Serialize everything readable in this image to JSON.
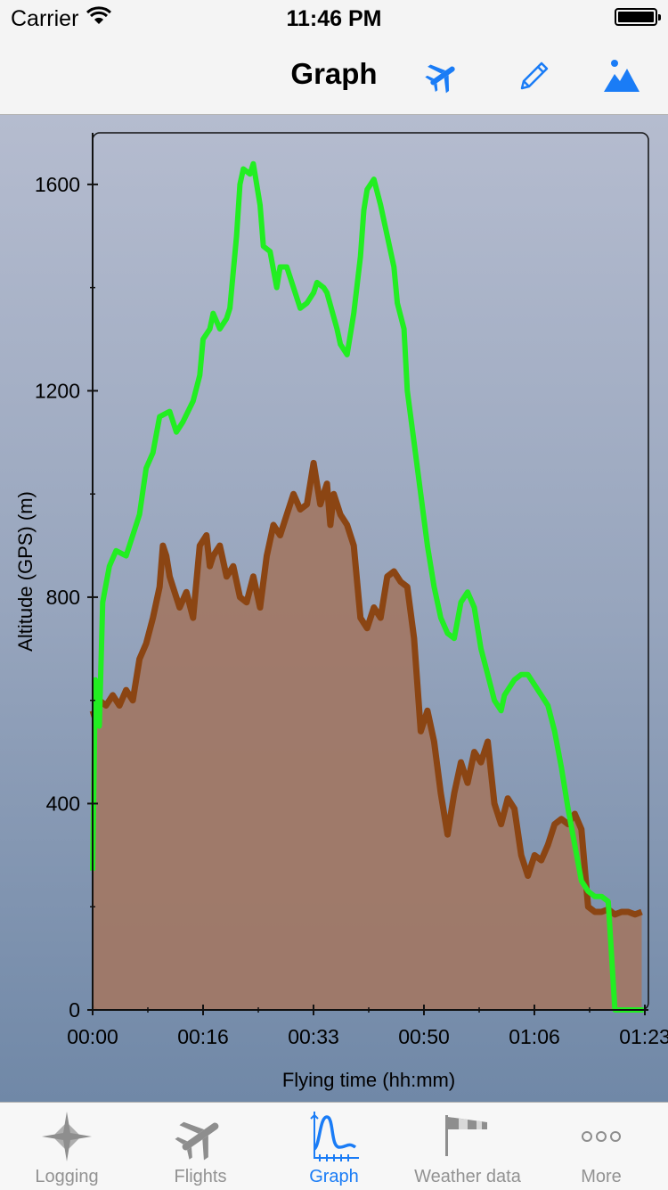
{
  "status_bar": {
    "carrier": "Carrier",
    "time": "11:46 PM"
  },
  "nav": {
    "title": "Graph",
    "accent": "#1a7cf6",
    "buttons": [
      "airplane-icon",
      "pencil-icon",
      "landscape-icon"
    ]
  },
  "tabs": [
    {
      "label": "Logging",
      "icon": "compass-rose-icon",
      "active": false
    },
    {
      "label": "Flights",
      "icon": "airplane-icon",
      "active": false
    },
    {
      "label": "Graph",
      "icon": "graph-icon",
      "active": true
    },
    {
      "label": "Weather data",
      "icon": "windsock-icon",
      "active": false
    },
    {
      "label": "More",
      "icon": "more-icon",
      "active": false
    }
  ],
  "chart_data": {
    "type": "line",
    "ylabel": "Altitude (GPS) (m)",
    "xlabel": "Flying time (hh:mm)",
    "x_tick_labels": [
      "00:00",
      "00:16",
      "00:33",
      "00:50",
      "01:06",
      "01:23"
    ],
    "y_tick_labels": [
      "0",
      "400",
      "800",
      "1200",
      "1600"
    ],
    "ylim": [
      0,
      1700
    ],
    "xlim_minutes": [
      0,
      83
    ],
    "grid": false,
    "series": [
      {
        "color": "#22ee22",
        "style": "line",
        "x": [
          0,
          0.4,
          1,
          1.5,
          2.5,
          3.5,
          5,
          7,
          8,
          9,
          10,
          11.5,
          12.5,
          13.5,
          15,
          16,
          16.5,
          17.5,
          18,
          19,
          20,
          20.5,
          21.5,
          22,
          22.5,
          23.5,
          24,
          25,
          25.5,
          26.5,
          27.5,
          28,
          29,
          30,
          31,
          32,
          33,
          33.5,
          34.5,
          35,
          36.5,
          37,
          38,
          39,
          40,
          40.5,
          41,
          42,
          43,
          44,
          45,
          45.5,
          46.5,
          47,
          48,
          49,
          50,
          51,
          52,
          53,
          54,
          55,
          56,
          57,
          58,
          59,
          60,
          61,
          61.5,
          62.5,
          63,
          64,
          64.5,
          65,
          66,
          67,
          68,
          69,
          70,
          71,
          72,
          73,
          74,
          75,
          76,
          77,
          78,
          79,
          80,
          81,
          82,
          82.2,
          82.3
        ],
        "y": [
          270,
          640,
          550,
          790,
          860,
          890,
          880,
          960,
          1050,
          1080,
          1150,
          1160,
          1120,
          1140,
          1180,
          1230,
          1300,
          1320,
          1350,
          1320,
          1340,
          1360,
          1500,
          1600,
          1630,
          1620,
          1640,
          1560,
          1480,
          1470,
          1400,
          1440,
          1440,
          1400,
          1360,
          1370,
          1390,
          1410,
          1400,
          1390,
          1320,
          1290,
          1270,
          1350,
          1460,
          1550,
          1590,
          1610,
          1560,
          1500,
          1440,
          1370,
          1320,
          1200,
          1100,
          1000,
          900,
          820,
          760,
          730,
          720,
          790,
          810,
          780,
          700,
          650,
          600,
          580,
          610,
          630,
          640,
          650,
          650,
          650,
          630,
          610,
          590,
          540,
          470,
          390,
          320,
          250,
          230,
          220,
          220,
          210,
          0,
          0,
          0,
          0,
          0,
          0,
          0
        ],
        "samples_used": 86
      },
      {
        "color": "#8b4513",
        "style": "area",
        "fill": "#a07866",
        "x": [
          0,
          0.5,
          1,
          2,
          3,
          4,
          5,
          6,
          7,
          8,
          9,
          10,
          10.5,
          11,
          11.5,
          12,
          13,
          14,
          15,
          16,
          17,
          17.5,
          18,
          19,
          20,
          21,
          22,
          23,
          24,
          25,
          26,
          27,
          28,
          29,
          30,
          31,
          32,
          33,
          34,
          35,
          35.5,
          36,
          37,
          38,
          39,
          40,
          41,
          42,
          43,
          44,
          45,
          46,
          47,
          48,
          49,
          50,
          51,
          52,
          53,
          54,
          55,
          56,
          57,
          58,
          59,
          60,
          61,
          62,
          63,
          64,
          65,
          66,
          67,
          68,
          69,
          70,
          71,
          72,
          73,
          74,
          75,
          76,
          77,
          78,
          79,
          80,
          81,
          82
        ],
        "y": [
          580,
          560,
          600,
          590,
          610,
          590,
          620,
          600,
          680,
          710,
          760,
          820,
          900,
          880,
          840,
          820,
          780,
          810,
          760,
          900,
          920,
          860,
          880,
          900,
          840,
          860,
          800,
          790,
          840,
          780,
          880,
          940,
          920,
          960,
          1000,
          970,
          980,
          1060,
          980,
          1020,
          940,
          1000,
          960,
          940,
          900,
          760,
          740,
          780,
          760,
          840,
          850,
          830,
          820,
          720,
          540,
          580,
          520,
          420,
          340,
          420,
          480,
          440,
          500,
          480,
          520,
          400,
          360,
          410,
          390,
          300,
          260,
          300,
          290,
          320,
          360,
          370,
          360,
          380,
          350,
          200,
          190,
          190,
          195,
          185,
          190,
          190,
          185,
          190
        ]
      }
    ]
  }
}
